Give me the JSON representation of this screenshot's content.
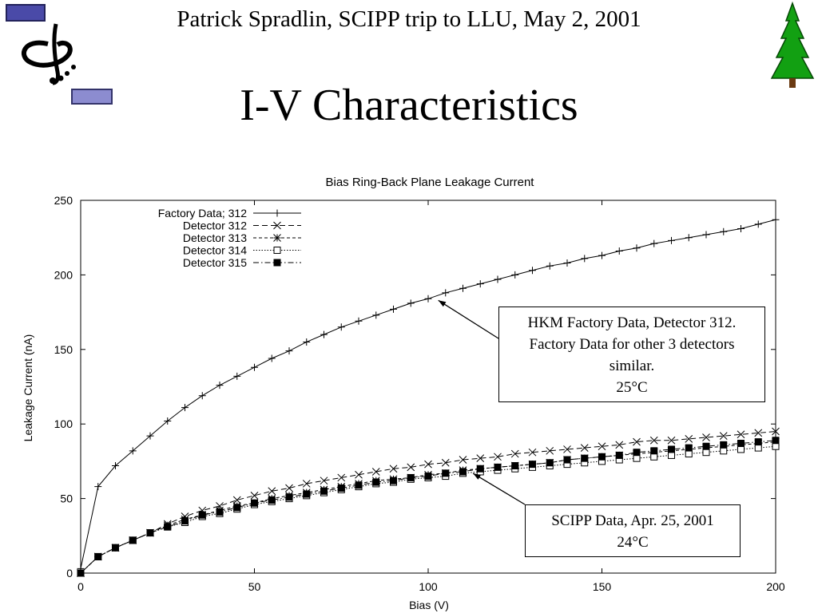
{
  "slide": {
    "header": "Patrick Spradlin, SCIPP trip to LLU, May 2, 2001",
    "title": "I-V Characteristics"
  },
  "icons": {
    "logo": "scipp-logo-icon",
    "tree": "redwood-tree-icon"
  },
  "colors": {
    "tree_green": "#12a012",
    "trunk_brown": "#6b3a12",
    "logo_box": "#4a4aa8",
    "logo_box_light": "#8c8cd0"
  },
  "chart_data": {
    "type": "line",
    "title": "Bias Ring-Back Plane Leakage Current",
    "xlabel": "Bias (V)",
    "ylabel": "Leakage Current (nA)",
    "xlim": [
      0,
      200
    ],
    "ylim": [
      0,
      250
    ],
    "xticks": [
      "0",
      "50",
      "100",
      "150",
      "200"
    ],
    "yticks": [
      "0",
      "50",
      "100",
      "150",
      "200",
      "250"
    ],
    "legend_position": "top-left",
    "x": [
      0,
      5,
      10,
      15,
      20,
      25,
      30,
      35,
      40,
      45,
      50,
      55,
      60,
      65,
      70,
      75,
      80,
      85,
      90,
      95,
      100,
      105,
      110,
      115,
      120,
      125,
      130,
      135,
      140,
      145,
      150,
      155,
      160,
      165,
      170,
      175,
      180,
      185,
      190,
      195,
      200
    ],
    "series": [
      {
        "name": "Factory Data; 312",
        "marker": "plus",
        "dash": "solid",
        "values": [
          3,
          58,
          72,
          82,
          92,
          102,
          111,
          119,
          126,
          132,
          138,
          144,
          149,
          155,
          160,
          165,
          169,
          173,
          177,
          181,
          184,
          188,
          191,
          194,
          197,
          200,
          203,
          206,
          208,
          211,
          213,
          216,
          218,
          221,
          223,
          225,
          227,
          229,
          231,
          234,
          237
        ]
      },
      {
        "name": "Detector 312",
        "marker": "x",
        "dash": "dashed",
        "values": [
          0,
          11,
          17,
          22,
          27,
          33,
          38,
          42,
          45,
          49,
          52,
          55,
          57,
          60,
          62,
          64,
          66,
          68,
          70,
          71,
          73,
          74,
          76,
          77,
          78,
          80,
          81,
          82,
          83,
          84,
          85,
          86,
          88,
          89,
          89,
          90,
          91,
          92,
          93,
          94,
          95
        ]
      },
      {
        "name": "Detector 313",
        "marker": "asterisk",
        "dash": "dashed-short",
        "values": [
          0,
          11,
          17,
          22,
          27,
          32,
          36,
          39,
          42,
          45,
          47,
          50,
          52,
          54,
          56,
          58,
          60,
          62,
          63,
          64,
          66,
          67,
          69,
          70,
          71,
          72,
          73,
          74,
          76,
          77,
          78,
          79,
          80,
          81,
          82,
          83,
          84,
          85,
          86,
          87,
          88
        ]
      },
      {
        "name": "Detector 314",
        "marker": "open-square",
        "dash": "dotted",
        "values": [
          0,
          11,
          17,
          22,
          27,
          31,
          34,
          38,
          40,
          43,
          46,
          48,
          50,
          52,
          54,
          56,
          58,
          60,
          61,
          63,
          64,
          65,
          67,
          68,
          69,
          70,
          71,
          72,
          73,
          74,
          75,
          76,
          77,
          78,
          79,
          80,
          81,
          82,
          83,
          84,
          85
        ]
      },
      {
        "name": "Detector 315",
        "marker": "filled-square",
        "dash": "dash-dot",
        "values": [
          0,
          11,
          17,
          22,
          27,
          31,
          35,
          39,
          41,
          44,
          47,
          49,
          51,
          53,
          55,
          57,
          59,
          61,
          62,
          64,
          65,
          67,
          68,
          70,
          71,
          72,
          73,
          74,
          76,
          77,
          78,
          79,
          81,
          82,
          83,
          84,
          85,
          86,
          87,
          88,
          89
        ]
      }
    ],
    "annotations": [
      {
        "lines": [
          "HKM Factory Data, Detector 312.",
          "Factory Data for other 3 detectors",
          "similar.",
          "25°C"
        ],
        "target": {
          "x": 102,
          "y": 184
        }
      },
      {
        "lines": [
          "SCIPP Data, Apr. 25, 2001",
          "24°C"
        ],
        "target": {
          "x": 112,
          "y": 69
        }
      }
    ]
  }
}
